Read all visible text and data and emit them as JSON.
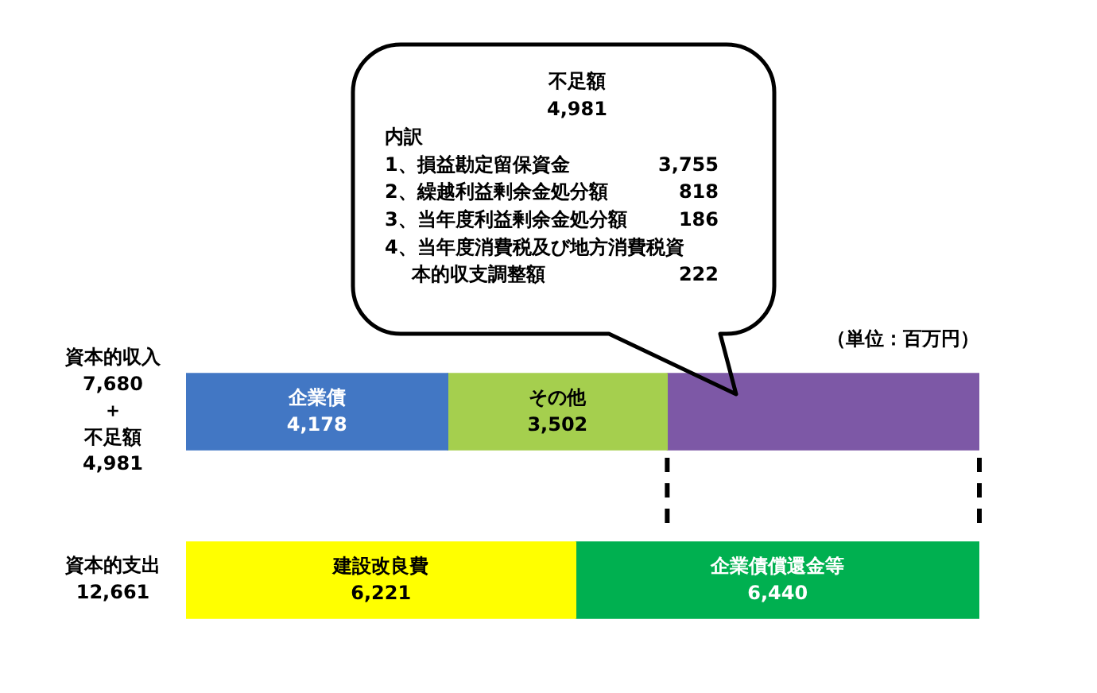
{
  "chart_data": {
    "type": "bar",
    "orientation": "horizontal",
    "stacked": true,
    "categories": [
      "資本的収入\n7,680\n＋不足額\n4,981",
      "資本的支出\n12,661"
    ],
    "series": [
      {
        "name": "企業債",
        "color": "#4277c4",
        "values": [
          4178,
          null
        ],
        "value_labels": [
          "4,178",
          null
        ]
      },
      {
        "name": "その他",
        "color": "#a5cf4e",
        "values": [
          3502,
          null
        ],
        "value_labels": [
          "3,502",
          null
        ]
      },
      {
        "color": "#7d58a6",
        "values": [
          4981,
          null
        ]
      },
      {
        "name": "建設改良費",
        "color": "#ffff00",
        "values": [
          null,
          6221
        ],
        "value_labels": [
          null,
          "6,221"
        ]
      },
      {
        "name": "企業債償還金等",
        "color": "#00b050",
        "values": [
          null,
          6440
        ],
        "value_labels": [
          null,
          "6,440"
        ]
      }
    ],
    "xlim": [
      0,
      12661
    ],
    "tick_labels": "y",
    "ref_lines": [
      {
        "axis": "x",
        "value": 7680,
        "line_style": "dashed",
        "color": "#000000"
      },
      {
        "axis": "x",
        "value": 12661,
        "line_style": "dashed",
        "color": "#000000"
      }
    ],
    "annotations": [
      "不足額\n4,981",
      "内訳\n1、損益勘定留保資金\t3,755\n2、繰越利益剰余金処分額\t818\n3、当年度利益剰余金処分額\t186\n4、当年度消費税及び地方消費税資本的収支調整額\t222",
      "（単位：百万円）"
    ]
  }
}
